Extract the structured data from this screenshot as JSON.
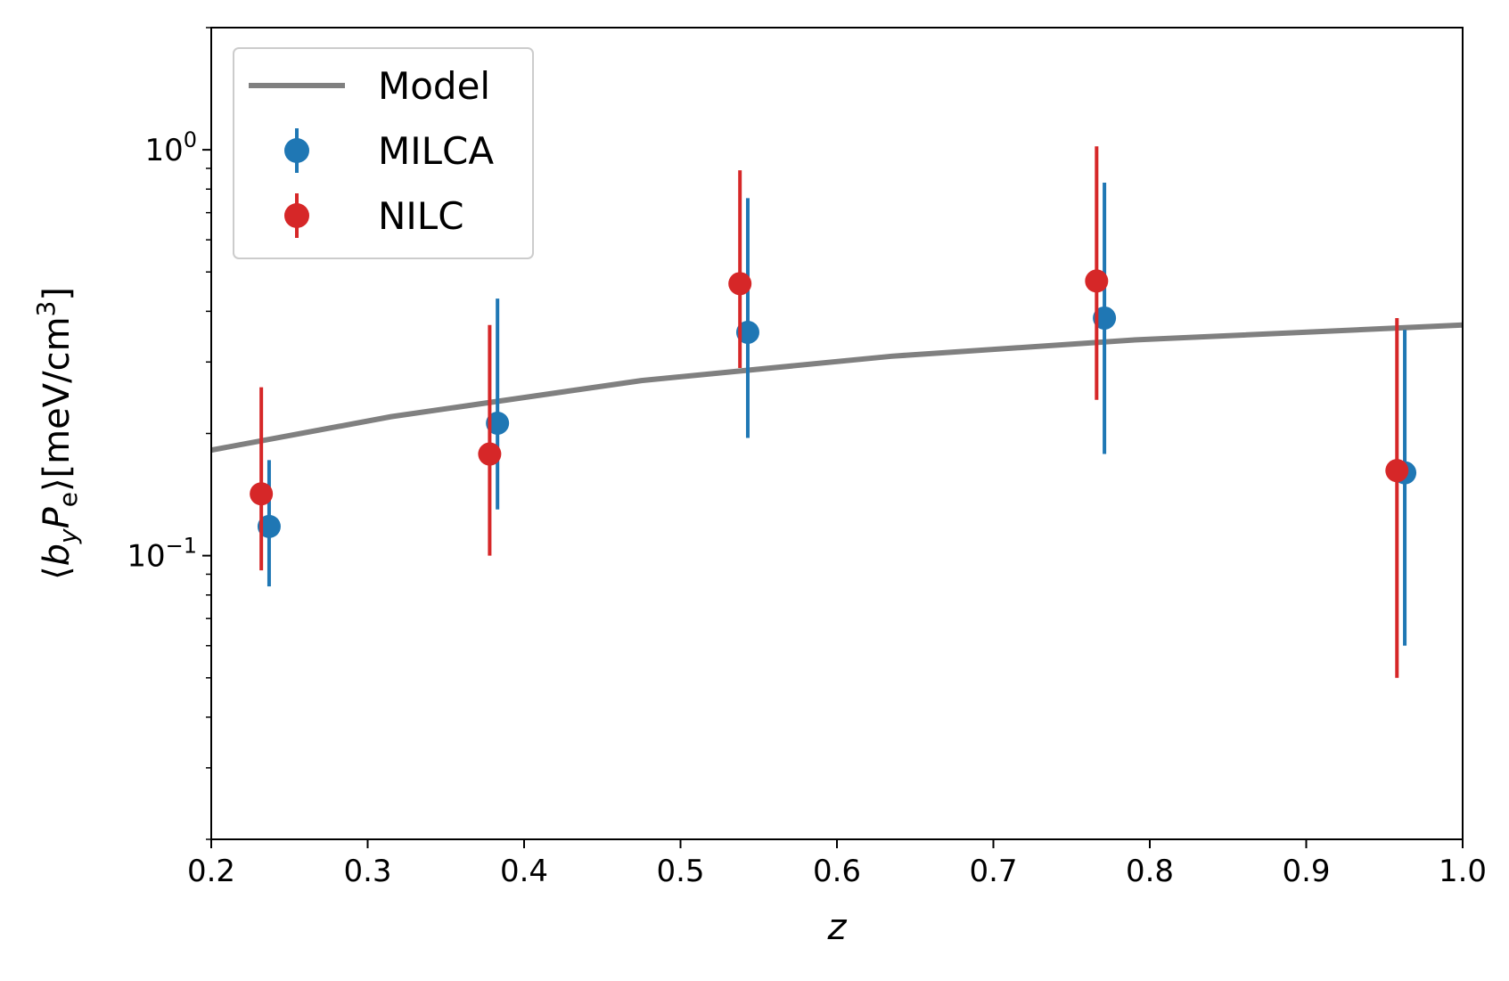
{
  "chart_data": {
    "type": "scatter",
    "xlabel": "z",
    "ylabel": {
      "open": "⟨",
      "b": "b",
      "b_sub": "y",
      "P": "P",
      "P_sub": "e",
      "close": "⟩",
      "unit": "[meV/cm",
      "unit_sup": "3",
      "unit_close": "]"
    },
    "xlim": [
      0.2,
      1.0
    ],
    "ylim": [
      0.02,
      2.0
    ],
    "yscale": "log",
    "x_ticks": [
      "0.2",
      "0.3",
      "0.4",
      "0.5",
      "0.6",
      "0.7",
      "0.8",
      "0.9",
      "1.0"
    ],
    "y_major_ticks": [
      {
        "value": 1.0,
        "base": "10",
        "exp": "0"
      },
      {
        "value": 0.1,
        "base": "10",
        "exp": "−1"
      }
    ],
    "legend_position": "upper-left",
    "series": [
      {
        "name": "Model",
        "kind": "line",
        "color": "#808080",
        "x": [
          0.2,
          0.315,
          0.475,
          0.635,
          0.79,
          1.0
        ],
        "y": [
          0.182,
          0.22,
          0.27,
          0.31,
          0.34,
          0.37
        ]
      },
      {
        "name": "MILCA",
        "kind": "errorbar",
        "color": "#1f77b4",
        "x": [
          0.237,
          0.383,
          0.543,
          0.771,
          0.963
        ],
        "y": [
          0.118,
          0.212,
          0.355,
          0.385,
          0.16
        ],
        "y_low": [
          0.084,
          0.13,
          0.195,
          0.178,
          0.06
        ],
        "y_high": [
          0.172,
          0.43,
          0.76,
          0.83,
          0.36
        ]
      },
      {
        "name": "NILC",
        "kind": "errorbar",
        "color": "#d62728",
        "x": [
          0.232,
          0.378,
          0.538,
          0.766,
          0.958
        ],
        "y": [
          0.142,
          0.178,
          0.468,
          0.475,
          0.162
        ],
        "y_low": [
          0.092,
          0.1,
          0.29,
          0.242,
          0.05
        ],
        "y_high": [
          0.26,
          0.37,
          0.89,
          1.02,
          0.385
        ]
      }
    ]
  }
}
